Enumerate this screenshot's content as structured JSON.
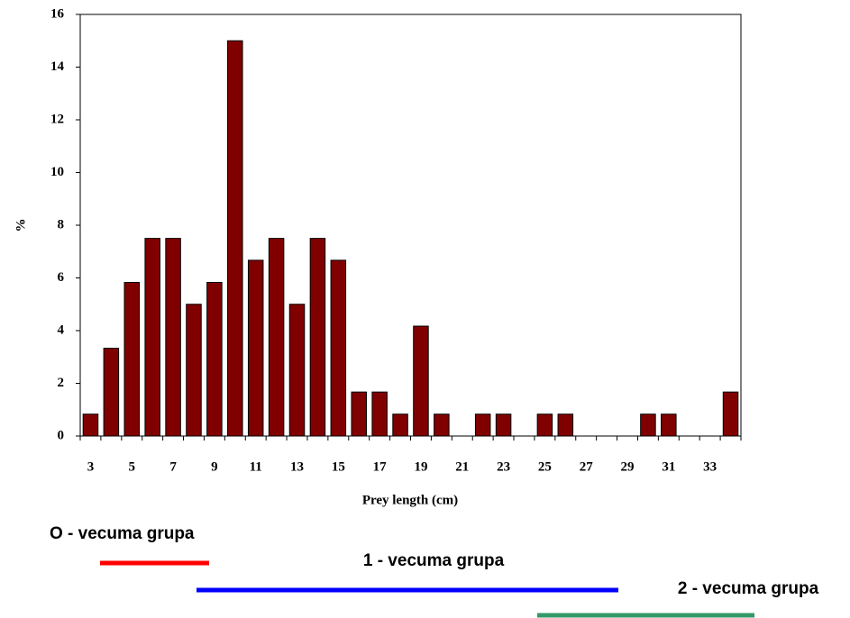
{
  "chart_data": {
    "type": "bar",
    "y_label": "%",
    "x_label": "Prey length (cm)",
    "categories": [
      "3",
      null,
      "5",
      null,
      "7",
      null,
      "9",
      null,
      "11",
      null,
      "13",
      null,
      "15",
      null,
      "17",
      null,
      "19",
      null,
      "21",
      null,
      "23",
      null,
      "25",
      null,
      "27",
      null,
      "29",
      null,
      "31",
      null,
      "33",
      null
    ],
    "values": [
      0.83,
      3.33,
      5.83,
      7.5,
      7.5,
      5,
      5.83,
      15,
      6.67,
      7.5,
      5,
      7.5,
      6.67,
      1.67,
      1.67,
      0.83,
      4.17,
      0.83,
      0,
      0.83,
      0.83,
      0,
      0.83,
      0.83,
      0,
      0,
      0,
      0.83,
      0.83,
      0,
      0,
      1.67
    ],
    "color": "#800000",
    "ylim": [
      0,
      16
    ],
    "yticks": [
      0,
      2,
      4,
      6,
      8,
      10,
      12,
      14,
      16
    ],
    "annotations": [
      {
        "text": "O - vecuma grupa",
        "color": "#ff0000"
      },
      {
        "text": "1 - vecuma grupa",
        "color": "#0000ff"
      },
      {
        "text": "2 - vecuma grupa",
        "color": "#339966"
      }
    ]
  }
}
